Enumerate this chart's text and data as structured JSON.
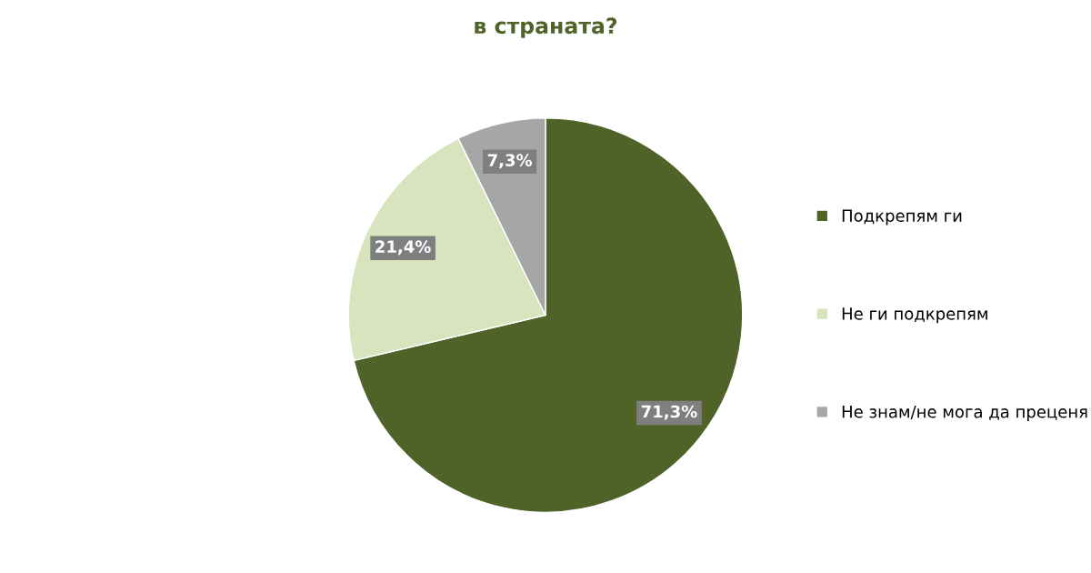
{
  "chart_data": {
    "type": "pie",
    "title": "в страната?",
    "categories": [
      "Подкрепям ги",
      "Не ги подкрепям",
      "Не знам/не мога да преценя"
    ],
    "values": [
      71.3,
      21.4,
      7.3
    ],
    "value_labels": [
      "71,3%",
      "21,4%",
      "7,3%"
    ],
    "colors": [
      "#4f6228",
      "#d7e4bd",
      "#a6a6a6"
    ],
    "legend": "right"
  }
}
